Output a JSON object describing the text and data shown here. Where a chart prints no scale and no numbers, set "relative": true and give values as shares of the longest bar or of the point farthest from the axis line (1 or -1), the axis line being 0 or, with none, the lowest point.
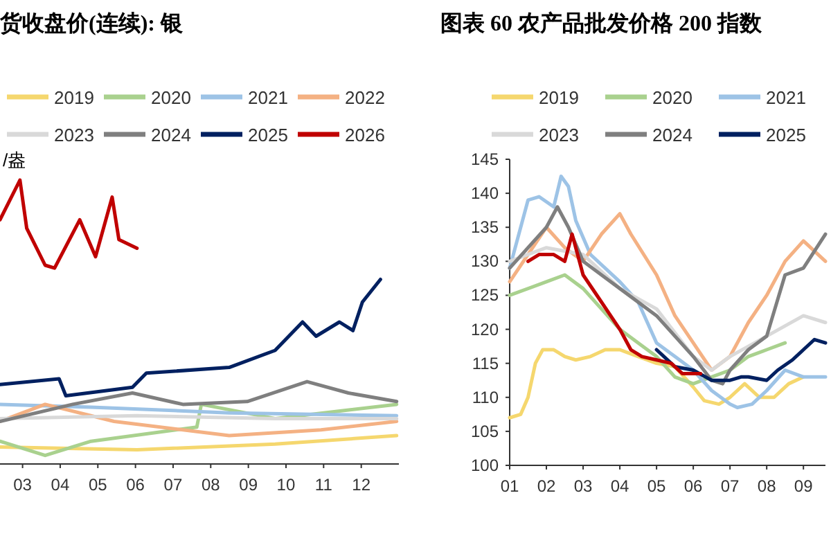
{
  "chart_data": [
    {
      "type": "line",
      "title": "货收盘价(连续): 银",
      "ylabel": "/盎",
      "relative": true,
      "legend": "top",
      "grid": false,
      "marker": "none",
      "xlim": [
        2.4,
        13
      ],
      "xticks": [
        {
          "value": 3,
          "label": "03"
        },
        {
          "value": 4,
          "label": "04"
        },
        {
          "value": 5,
          "label": "05"
        },
        {
          "value": 6,
          "label": "06"
        },
        {
          "value": 7,
          "label": "07"
        },
        {
          "value": 8,
          "label": "08"
        },
        {
          "value": 9,
          "label": "09"
        },
        {
          "value": 10,
          "label": "10"
        },
        {
          "value": 11,
          "label": "11"
        },
        {
          "value": 12,
          "label": "12"
        }
      ],
      "series": [
        {
          "name": "2019",
          "color": "#f5d76e",
          "x": [
            2.4,
            6.04,
            9.71,
            12.94
          ],
          "values": [
            0.06,
            0.05,
            0.07,
            0.1
          ]
        },
        {
          "name": "2020",
          "color": "#a9d18e",
          "x": [
            2.4,
            3.6,
            4.82,
            7.63,
            7.75,
            9.71,
            12.94
          ],
          "values": [
            0.08,
            0.03,
            0.08,
            0.13,
            0.21,
            0.16,
            0.21
          ]
        },
        {
          "name": "2021",
          "color": "#9dc3e6",
          "x": [
            2.4,
            4.82,
            8.49,
            12.94
          ],
          "values": [
            0.21,
            0.2,
            0.18,
            0.17
          ]
        },
        {
          "name": "2022",
          "color": "#f4b183",
          "x": [
            2.4,
            3.6,
            5.43,
            8.49,
            10.93,
            12.94
          ],
          "values": [
            0.15,
            0.21,
            0.15,
            0.1,
            0.12,
            0.15
          ]
        },
        {
          "name": "2023",
          "color": "#d9d9d9",
          "x": [
            2.4,
            6.04,
            9.71,
            12.94
          ],
          "values": [
            0.16,
            0.17,
            0.16,
            0.16
          ]
        },
        {
          "name": "2024",
          "color": "#7f7f7f",
          "x": [
            2.4,
            4.33,
            5.92,
            7.26,
            8.97,
            10.56,
            11.66,
            12.94
          ],
          "values": [
            0.15,
            0.21,
            0.25,
            0.21,
            0.22,
            0.29,
            0.25,
            0.22
          ]
        },
        {
          "name": "2025",
          "color": "#002060",
          "x": [
            2.4,
            3.97,
            4.15,
            5.92,
            6.29,
            8.49,
            9.71,
            10.44,
            10.8,
            11.42,
            11.78,
            12.03,
            12.51
          ],
          "values": [
            0.28,
            0.3,
            0.24,
            0.27,
            0.32,
            0.34,
            0.4,
            0.5,
            0.45,
            0.5,
            0.47,
            0.57,
            0.65
          ]
        },
        {
          "name": "2026",
          "color": "#c00000",
          "x": [
            2.4,
            2.93,
            3.11,
            3.6,
            3.85,
            4.52,
            4.94,
            5.38,
            5.56,
            6.04
          ],
          "values": [
            0.86,
            1.0,
            0.83,
            0.7,
            0.69,
            0.86,
            0.73,
            0.94,
            0.79,
            0.76
          ]
        }
      ]
    },
    {
      "type": "line",
      "title": "图表 60 农产品批发价格 200 指数",
      "legend": "top",
      "grid": false,
      "marker": "none",
      "xlim": [
        1,
        9.6
      ],
      "xticks": [
        {
          "value": 1,
          "label": "01"
        },
        {
          "value": 2,
          "label": "02"
        },
        {
          "value": 3,
          "label": "03"
        },
        {
          "value": 4,
          "label": "04"
        },
        {
          "value": 5,
          "label": "05"
        },
        {
          "value": 6,
          "label": "06"
        },
        {
          "value": 7,
          "label": "07"
        },
        {
          "value": 8,
          "label": "08"
        },
        {
          "value": 9,
          "label": "09"
        }
      ],
      "ylim": [
        100,
        145
      ],
      "yticks": [
        100,
        105,
        110,
        115,
        120,
        125,
        130,
        135,
        140,
        145
      ],
      "series": [
        {
          "name": "2019",
          "color": "#f5d76e",
          "x": [
            1,
            1.3,
            1.5,
            1.7,
            1.9,
            2.2,
            2.5,
            2.8,
            3.2,
            3.6,
            4,
            4.5,
            5,
            5.5,
            6,
            6.3,
            6.7,
            7,
            7.4,
            7.8,
            8.2,
            8.6,
            9
          ],
          "values": [
            107,
            107.5,
            110,
            115,
            117,
            117,
            116,
            115.5,
            116,
            117,
            117,
            116,
            115,
            114.5,
            111.5,
            109.5,
            109,
            110,
            112,
            110,
            110,
            112,
            113
          ]
        },
        {
          "name": "2020",
          "color": "#a9d18e",
          "x": [
            1,
            2,
            2.5,
            3,
            3.5,
            4,
            4.5,
            5,
            5.5,
            6,
            6.5,
            7,
            7.5,
            8,
            8.5
          ],
          "values": [
            125,
            127,
            128,
            126,
            123,
            120,
            118,
            116,
            113,
            112,
            113,
            114,
            116,
            117,
            118
          ]
        },
        {
          "name": "2021",
          "color": "#9dc3e6",
          "x": [
            1,
            1.5,
            1.8,
            2.2,
            2.4,
            2.6,
            2.8,
            3.2,
            4,
            4.5,
            5,
            5.5,
            6,
            6.5,
            7,
            7.2,
            7.6,
            8,
            8.5,
            9,
            9.6
          ],
          "values": [
            129,
            139,
            139.5,
            138,
            142.5,
            141,
            136,
            131,
            127,
            124,
            118,
            116,
            114,
            111,
            109,
            108.5,
            109,
            111,
            114,
            113,
            113
          ]
        },
        {
          "color": "#f4b183",
          "x": [
            1,
            2,
            2.5,
            3,
            3.5,
            4,
            4.3,
            5,
            5.5,
            6,
            6.5,
            7,
            7.5,
            8,
            8.5,
            9,
            9.6
          ],
          "values": [
            127,
            135,
            132,
            130,
            134,
            137,
            134,
            128,
            122,
            118,
            114,
            116,
            121,
            125,
            130,
            133,
            130
          ]
        },
        {
          "name": "2023",
          "color": "#d9d9d9",
          "x": [
            1,
            2,
            3,
            4,
            5,
            6,
            6.5,
            7,
            8,
            9,
            9.6
          ],
          "values": [
            130,
            132,
            131,
            126,
            123,
            116,
            114,
            116,
            119,
            122,
            121
          ]
        },
        {
          "name": "2024",
          "color": "#7f7f7f",
          "x": [
            1,
            1.5,
            2,
            2.3,
            2.6,
            3,
            3.5,
            4,
            5,
            6,
            6.5,
            6.8,
            7,
            7.5,
            8,
            8.5,
            9,
            9.6
          ],
          "values": [
            129,
            132,
            135,
            138,
            135,
            130,
            128,
            126,
            122,
            116,
            112.5,
            112,
            114,
            117,
            119,
            128,
            129,
            134
          ]
        },
        {
          "name": "2025",
          "color": "#002060",
          "x": [
            5,
            5.5,
            6,
            6.5,
            7,
            7.3,
            7.5,
            8,
            8.3,
            8.7,
            9,
            9.3,
            9.6
          ],
          "values": [
            117,
            114.5,
            114,
            112.5,
            112.5,
            113,
            113,
            112.5,
            114,
            115.5,
            117,
            118.5,
            118
          ]
        },
        {
          "color": "#c00000",
          "x": [
            1.5,
            1.8,
            2.2,
            2.5,
            2.7,
            3,
            3.5,
            4,
            4.3,
            4.6,
            5,
            5.4,
            5.7,
            6,
            6.2
          ],
          "values": [
            130,
            131,
            131,
            130,
            134,
            128,
            124,
            120,
            117,
            116,
            115.5,
            115,
            113.5,
            113.5,
            113.5
          ]
        }
      ]
    }
  ]
}
